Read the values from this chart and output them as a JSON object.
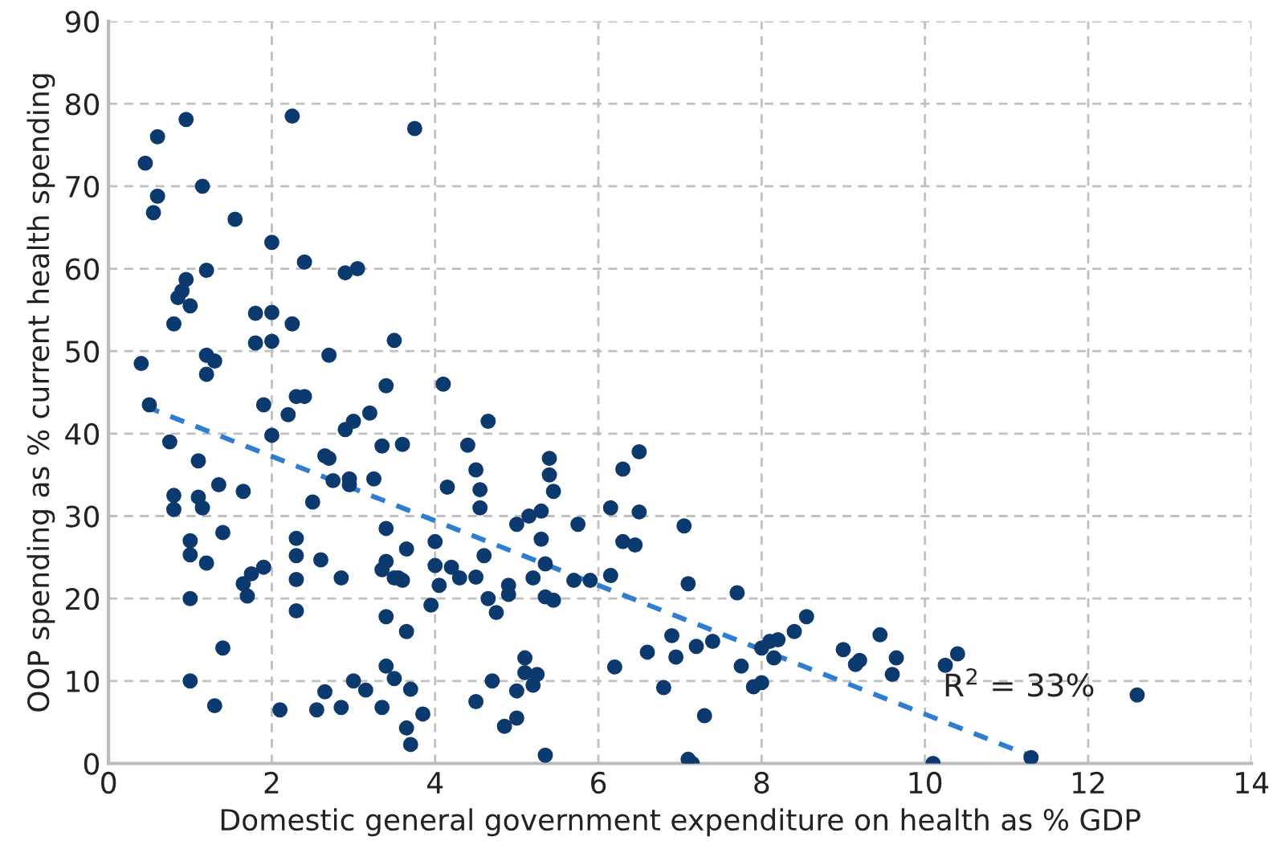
{
  "chart_data": {
    "type": "scatter",
    "xlabel": "Domestic general government expenditure on health as % GDP",
    "ylabel": "OOP spending as % current health spending",
    "xlim": [
      0,
      14
    ],
    "ylim": [
      0,
      90
    ],
    "xticks": [
      0,
      2,
      4,
      6,
      8,
      10,
      12,
      14
    ],
    "yticks": [
      0,
      10,
      20,
      30,
      40,
      50,
      60,
      70,
      80,
      90
    ],
    "grid": true,
    "legend": false,
    "annotations": [
      "R$^{2}$ = 33%"
    ],
    "series": [
      {
        "color": "#0d3a6e",
        "marker": "circle",
        "x": [
          0.4,
          0.45,
          0.5,
          0.55,
          0.6,
          0.6,
          0.75,
          0.8,
          0.8,
          0.8,
          0.85,
          0.9,
          0.95,
          0.95,
          1.0,
          1.0,
          1.0,
          1.0,
          1.0,
          1.1,
          1.1,
          1.15,
          1.15,
          1.2,
          1.2,
          1.2,
          1.2,
          1.3,
          1.3,
          1.35,
          1.4,
          1.4,
          1.55,
          1.65,
          1.65,
          1.7,
          1.75,
          1.8,
          1.8,
          1.9,
          1.9,
          2.0,
          2.0,
          2.0,
          2.0,
          2.1,
          2.2,
          2.25,
          2.25,
          2.3,
          2.3,
          2.3,
          2.3,
          2.3,
          2.4,
          2.4,
          2.5,
          2.55,
          2.6,
          2.65,
          2.65,
          2.7,
          2.7,
          2.75,
          2.85,
          2.85,
          2.9,
          2.9,
          2.95,
          2.95,
          3.0,
          3.0,
          3.05,
          3.15,
          3.2,
          3.25,
          3.35,
          3.35,
          3.35,
          3.4,
          3.4,
          3.4,
          3.4,
          3.4,
          3.5,
          3.5,
          3.55,
          3.5,
          3.6,
          3.65,
          3.65,
          3.7,
          3.7,
          3.65,
          3.6,
          3.75,
          3.85,
          3.95,
          4.0,
          4.0,
          4.05,
          4.1,
          4.15,
          4.2,
          4.3,
          4.4,
          4.5,
          4.5,
          4.5,
          4.55,
          4.55,
          4.6,
          4.65,
          4.65,
          4.7,
          4.75,
          4.85,
          4.9,
          4.9,
          5.0,
          5.0,
          5.0,
          5.1,
          5.1,
          5.15,
          5.2,
          5.2,
          5.25,
          5.3,
          5.3,
          5.35,
          5.35,
          5.35,
          5.4,
          5.4,
          5.45,
          5.45,
          5.7,
          5.75,
          5.9,
          6.15,
          6.15,
          6.2,
          6.3,
          6.3,
          6.45,
          6.5,
          6.5,
          6.6,
          6.8,
          6.9,
          6.95,
          7.05,
          7.1,
          7.1,
          7.15,
          7.2,
          7.3,
          7.4,
          7.7,
          7.75,
          7.9,
          8.0,
          8.0,
          8.1,
          8.15,
          8.2,
          8.4,
          8.55,
          9.0,
          9.15,
          9.2,
          9.45,
          9.6,
          9.65,
          10.1,
          10.25,
          10.4,
          11.3,
          12.6
        ],
        "values": [
          48.5,
          72.8,
          43.5,
          66.8,
          68.8,
          76,
          39,
          53.3,
          32.5,
          30.8,
          56.5,
          57.3,
          58.7,
          78.1,
          55.5,
          25.3,
          27,
          20,
          10,
          36.7,
          32.3,
          31,
          70,
          59.8,
          49.5,
          47.2,
          24.3,
          7,
          48.8,
          33.8,
          28,
          14,
          66,
          33,
          21.8,
          20.3,
          23,
          54.6,
          51,
          43.5,
          23.8,
          63.2,
          54.7,
          51.2,
          39.8,
          6.5,
          42.3,
          78.5,
          53.3,
          27.3,
          25.2,
          22.3,
          18.5,
          44.5,
          44.5,
          60.8,
          31.7,
          6.5,
          24.7,
          8.7,
          37.3,
          37,
          49.5,
          34.3,
          22.5,
          6.8,
          59.5,
          40.5,
          34.5,
          33.8,
          10,
          41.5,
          60,
          8.9,
          42.5,
          34.5,
          23.5,
          6.8,
          38.5,
          28.5,
          24.5,
          11.8,
          45.8,
          17.8,
          10.3,
          22.5,
          22.5,
          51.3,
          22.2,
          16,
          4.3,
          2.3,
          9,
          26,
          38.7,
          77,
          6,
          19.2,
          24,
          26.9,
          21.6,
          46,
          33.5,
          23.8,
          22.5,
          38.6,
          35.6,
          22.6,
          7.5,
          33.2,
          31,
          25.2,
          41.5,
          20,
          10,
          18.3,
          4.5,
          21.6,
          20.5,
          8.8,
          5.5,
          29,
          12.8,
          11,
          30,
          22.5,
          9.5,
          10.8,
          30.6,
          27.2,
          24.2,
          20.2,
          1,
          37,
          35,
          33,
          19.8,
          22.2,
          29,
          22.2,
          31,
          22.8,
          11.7,
          35.7,
          26.9,
          26.5,
          37.8,
          30.5,
          13.5,
          9.2,
          15.5,
          12.9,
          28.8,
          0.5,
          21.8,
          0,
          14.2,
          5.8,
          14.8,
          20.7,
          11.8,
          9.3,
          9.8,
          14,
          14.8,
          12.8,
          15,
          16,
          17.8,
          13.8,
          12,
          12.5,
          15.6,
          10.8,
          12.8,
          0,
          11.9,
          13.3,
          0.7,
          8.3
        ]
      },
      {
        "type": "line",
        "color": "#2e7dd1",
        "line_style": "dashed",
        "x": [
          0.45,
          11.35
        ],
        "values": [
          43.3,
          0.7
        ]
      }
    ]
  }
}
